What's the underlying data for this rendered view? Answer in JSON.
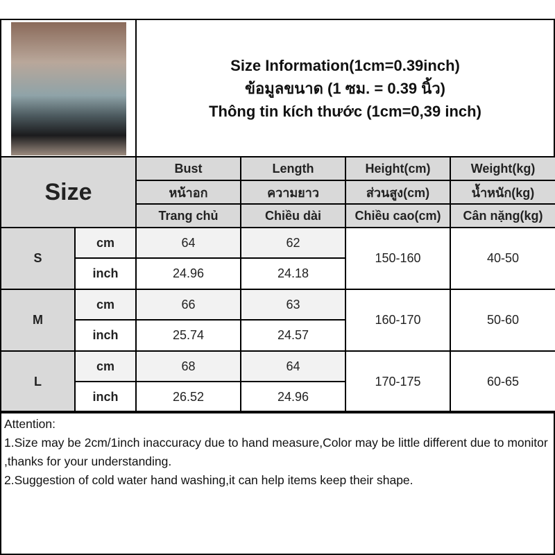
{
  "title": {
    "line1": "Size Information(1cm=0.39inch)",
    "line2": "ข้อมูลขนาด (1 ซม. = 0.39 นิ้ว)",
    "line3": "Thông tin kích thước (1cm=0,39 inch)"
  },
  "table": {
    "size_label": "Size",
    "headers": [
      {
        "en": "Bust",
        "th": "หน้าอก",
        "vi": "Trang chủ"
      },
      {
        "en": "Length",
        "th": "ความยาว",
        "vi": "Chiều dài"
      },
      {
        "en": "Height(cm)",
        "th": "ส่วนสูง(cm)",
        "vi": "Chiều cao(cm)"
      },
      {
        "en": "Weight(kg)",
        "th": "น้ำหนัก(kg)",
        "vi": "Cân nặng(kg)"
      }
    ],
    "units": {
      "cm": "cm",
      "inch": "inch"
    },
    "rows": [
      {
        "size": "S",
        "cm": {
          "bust": "64",
          "length": "62"
        },
        "inch": {
          "bust": "24.96",
          "length": "24.18"
        },
        "height": "150-160",
        "weight": "40-50"
      },
      {
        "size": "M",
        "cm": {
          "bust": "66",
          "length": "63"
        },
        "inch": {
          "bust": "25.74",
          "length": "24.57"
        },
        "height": "160-170",
        "weight": "50-60"
      },
      {
        "size": "L",
        "cm": {
          "bust": "68",
          "length": "64"
        },
        "inch": {
          "bust": "26.52",
          "length": "24.96"
        },
        "height": "170-175",
        "weight": "60-65"
      }
    ]
  },
  "attention": {
    "heading": "Attention:",
    "note1": "1.Size may be 2cm/1inch inaccuracy due to hand measure,Color may be little different due to monitor ,thanks for your understanding.",
    "note2": "2.Suggestion of cold water hand washing,it can help items keep their shape."
  }
}
